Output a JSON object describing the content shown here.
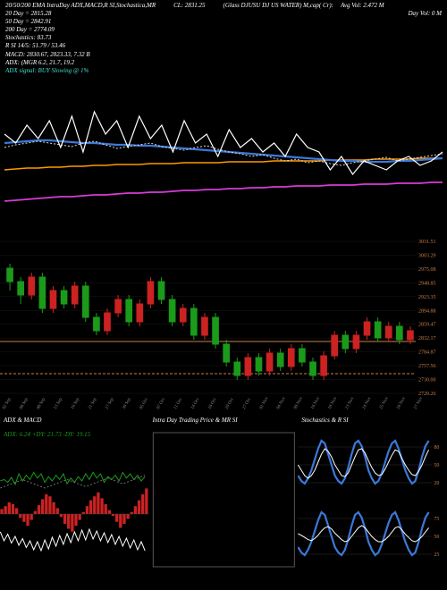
{
  "header": {
    "line1_left": "20/50/200 EMA IntraDay ADX,MACD,R   SI,Stochastica,MR",
    "line1_mid": "CL: 2831.25",
    "line1_right_a": "(Glass DJUSU   DJ US WATER) M,cap( Cr):",
    "line1_right_b": "Avg Vol: 2.472  M",
    "ma20": "20  Day = 2815.28",
    "ma50": "50  Day = 2842.91",
    "ma200": "200 Day = 2774.09",
    "stoch": "Stochastics: 83.73",
    "rsi": "R     SI 14/5: 51.79 / 53.46",
    "macd": "MACD: 2830.67, 2823.33, 7.32  B",
    "adx": "ADX:                            (MGR 6.2, 21.7, 19.2",
    "adx_sig": "ADX signal:                                               BUY Slowing @ 1%",
    "dayvol": "Day Vol: 0   M"
  },
  "colors": {
    "bg": "#000000",
    "text": "#ffffff",
    "accent": "#c97f4a",
    "ma20": "#ffffff",
    "ma50": "#3c78d8",
    "ma200": "#ff9900",
    "extra_line": "#d63cd6",
    "grid": "#333333",
    "candle_up": "#1a9b1a",
    "candle_up2": "#33cc33",
    "candle_dn": "#cc2222",
    "macd_hist": "#cc2222",
    "macd_line": "#1a9b1a",
    "stoch_fast": "#3c78d8",
    "stoch_slow": "#ffffff",
    "adx_txt": "#1a9b1a"
  },
  "candle_axis": [
    "3031.51",
    "3003.29",
    "2975.08",
    "2948.85",
    "2923.35",
    "2894.88",
    "2859.47",
    "2832.17",
    "2784.87",
    "2757.56",
    "2730.00",
    "2720.26"
  ],
  "dates": [
    "02 Sep",
    "06 Sep",
    "08 Sep",
    "13 Sep",
    "16 Sep",
    "21 Sep",
    "27 Sep",
    "30 Sep",
    "05 Oct",
    "07 Oct",
    "11 Oct",
    "14 Oct",
    "18 Oct",
    "20 Oct",
    "27 Oct",
    "01 Nov",
    "04 Nov",
    "09 Nov",
    "16 Nov",
    "18 Nov",
    "23 Nov",
    "24 Nov",
    "25 Nov",
    "26 Nov",
    "27 Nov"
  ],
  "ma_series": {
    "white": [
      70,
      80,
      60,
      75,
      55,
      85,
      50,
      90,
      45,
      70,
      55,
      85,
      50,
      75,
      60,
      90,
      55,
      80,
      70,
      95,
      65,
      85,
      75,
      90,
      80,
      95,
      70,
      85,
      90,
      110,
      95,
      115,
      100,
      105,
      110,
      100,
      95,
      105,
      100,
      90
    ],
    "dotted": [
      85,
      82,
      80,
      78,
      80,
      82,
      84,
      80,
      78,
      82,
      86,
      84,
      82,
      80,
      84,
      86,
      88,
      85,
      83,
      87,
      90,
      92,
      95,
      93,
      97,
      100,
      98,
      102,
      100,
      103,
      105,
      102,
      100,
      98,
      96,
      100,
      98,
      96,
      94,
      92
    ],
    "blue": [
      80,
      79,
      78,
      77,
      77,
      78,
      79,
      80,
      80,
      81,
      82,
      82,
      83,
      83,
      84,
      85,
      86,
      87,
      88,
      89,
      90,
      91,
      92,
      93,
      94,
      95,
      96,
      97,
      98,
      99,
      100,
      100,
      101,
      101,
      101,
      100,
      100,
      99,
      98,
      97
    ],
    "orange": [
      110,
      109,
      108,
      108,
      107,
      107,
      106,
      106,
      105,
      105,
      104,
      104,
      104,
      103,
      103,
      103,
      102,
      102,
      102,
      102,
      101,
      101,
      101,
      101,
      100,
      100,
      100,
      100,
      100,
      99,
      99,
      99,
      99,
      98,
      98,
      98,
      98,
      97,
      97,
      97
    ],
    "magenta": [
      145,
      144,
      143,
      142,
      141,
      140,
      140,
      139,
      138,
      138,
      137,
      136,
      136,
      135,
      135,
      134,
      133,
      133,
      132,
      132,
      131,
      131,
      130,
      130,
      129,
      129,
      128,
      128,
      128,
      127,
      127,
      127,
      126,
      126,
      126,
      125,
      125,
      125,
      124,
      124
    ]
  },
  "candles": [
    {
      "o": 40,
      "c": 55,
      "h": 35,
      "l": 65,
      "d": 1
    },
    {
      "o": 55,
      "c": 70,
      "h": 50,
      "l": 80,
      "d": 1
    },
    {
      "o": 70,
      "c": 50,
      "h": 45,
      "l": 75,
      "d": -1
    },
    {
      "o": 50,
      "c": 85,
      "h": 45,
      "l": 90,
      "d": 1
    },
    {
      "o": 85,
      "c": 65,
      "h": 60,
      "l": 90,
      "d": -1
    },
    {
      "o": 65,
      "c": 80,
      "h": 60,
      "l": 85,
      "d": 1
    },
    {
      "o": 80,
      "c": 60,
      "h": 55,
      "l": 85,
      "d": -1
    },
    {
      "o": 60,
      "c": 95,
      "h": 55,
      "l": 100,
      "d": 1
    },
    {
      "o": 95,
      "c": 110,
      "h": 90,
      "l": 115,
      "d": 1
    },
    {
      "o": 110,
      "c": 90,
      "h": 85,
      "l": 115,
      "d": -1
    },
    {
      "o": 90,
      "c": 75,
      "h": 70,
      "l": 95,
      "d": -1
    },
    {
      "o": 75,
      "c": 100,
      "h": 70,
      "l": 105,
      "d": 1
    },
    {
      "o": 100,
      "c": 80,
      "h": 75,
      "l": 105,
      "d": -1
    },
    {
      "o": 80,
      "c": 55,
      "h": 50,
      "l": 85,
      "d": -1
    },
    {
      "o": 55,
      "c": 75,
      "h": 50,
      "l": 80,
      "d": 1
    },
    {
      "o": 75,
      "c": 100,
      "h": 70,
      "l": 105,
      "d": 1
    },
    {
      "o": 100,
      "c": 85,
      "h": 80,
      "l": 105,
      "d": -1
    },
    {
      "o": 85,
      "c": 115,
      "h": 80,
      "l": 120,
      "d": 1
    },
    {
      "o": 115,
      "c": 95,
      "h": 90,
      "l": 120,
      "d": -1
    },
    {
      "o": 95,
      "c": 125,
      "h": 90,
      "l": 130,
      "d": 1
    },
    {
      "o": 125,
      "c": 145,
      "h": 120,
      "l": 150,
      "d": 1
    },
    {
      "o": 145,
      "c": 160,
      "h": 140,
      "l": 165,
      "d": 1
    },
    {
      "o": 160,
      "c": 140,
      "h": 135,
      "l": 165,
      "d": -1
    },
    {
      "o": 140,
      "c": 155,
      "h": 135,
      "l": 160,
      "d": 1
    },
    {
      "o": 155,
      "c": 135,
      "h": 130,
      "l": 160,
      "d": -1
    },
    {
      "o": 135,
      "c": 150,
      "h": 130,
      "l": 155,
      "d": 1
    },
    {
      "o": 150,
      "c": 130,
      "h": 125,
      "l": 155,
      "d": -1
    },
    {
      "o": 130,
      "c": 145,
      "h": 125,
      "l": 150,
      "d": 1
    },
    {
      "o": 145,
      "c": 160,
      "h": 140,
      "l": 165,
      "d": 1
    },
    {
      "o": 160,
      "c": 138,
      "h": 133,
      "l": 165,
      "d": -1
    },
    {
      "o": 138,
      "c": 115,
      "h": 110,
      "l": 142,
      "d": -1
    },
    {
      "o": 115,
      "c": 130,
      "h": 110,
      "l": 135,
      "d": 1
    },
    {
      "o": 130,
      "c": 115,
      "h": 110,
      "l": 135,
      "d": -1
    },
    {
      "o": 115,
      "c": 100,
      "h": 95,
      "l": 120,
      "d": -1
    },
    {
      "o": 100,
      "c": 118,
      "h": 95,
      "l": 122,
      "d": 1
    },
    {
      "o": 118,
      "c": 105,
      "h": 100,
      "l": 122,
      "d": -1
    },
    {
      "o": 105,
      "c": 120,
      "h": 100,
      "l": 125,
      "d": 1
    },
    {
      "o": 120,
      "c": 110,
      "h": 105,
      "l": 125,
      "d": -1
    }
  ],
  "sub1": {
    "title": "ADX  & MACD",
    "label": "ADX: 6.24  +DY: 21.73 -DY: 19.15",
    "hist": [
      5,
      8,
      12,
      10,
      6,
      -4,
      -8,
      -12,
      -6,
      3,
      9,
      15,
      20,
      18,
      12,
      6,
      -3,
      -10,
      -15,
      -18,
      -12,
      -6,
      2,
      8,
      14,
      18,
      22,
      16,
      10,
      4,
      -2,
      -8,
      -14,
      -10,
      -5,
      2,
      8,
      14,
      20,
      26
    ],
    "green": [
      60,
      58,
      62,
      55,
      65,
      50,
      60,
      52,
      58,
      48,
      56,
      50,
      62,
      54,
      60,
      52,
      58,
      50,
      64,
      56,
      62,
      54,
      60,
      50,
      58,
      48,
      56,
      50,
      62,
      54,
      58,
      52,
      60,
      48,
      56,
      50,
      58,
      52,
      60,
      54
    ],
    "white": [
      90,
      70,
      85,
      65,
      80,
      60,
      75,
      55,
      70,
      50,
      68,
      48,
      72,
      52,
      78,
      58,
      82,
      62,
      86,
      66,
      90,
      70,
      94,
      72,
      96,
      74,
      92,
      70,
      88,
      66,
      84,
      62,
      80,
      58,
      76,
      54,
      72,
      50,
      68,
      48
    ],
    "dash": [
      70,
      68,
      66,
      64,
      62,
      60,
      58,
      60,
      62,
      64,
      66,
      68,
      70,
      68,
      66,
      64,
      62,
      60,
      58,
      60,
      62,
      64,
      66,
      68,
      66,
      64,
      62,
      60,
      58,
      56,
      58,
      60,
      62,
      64,
      62,
      60,
      58,
      56,
      54,
      52
    ]
  },
  "sub2": {
    "title": "Intra  Day Trading Price  & MR         SI"
  },
  "sub3": {
    "title": "Stochastics & R         SI",
    "ticks": [
      "80",
      "50",
      "20"
    ],
    "ticks2": [
      "75",
      "50",
      "25"
    ],
    "blue": [
      30,
      20,
      15,
      25,
      40,
      60,
      80,
      95,
      90,
      70,
      50,
      30,
      20,
      15,
      25,
      45,
      70,
      90,
      95,
      85,
      65,
      40,
      25,
      15,
      20,
      35,
      55,
      75,
      90,
      95,
      80,
      60,
      40,
      25,
      15,
      20,
      40,
      65,
      85,
      95
    ],
    "white": [
      50,
      40,
      30,
      25,
      30,
      40,
      55,
      70,
      80,
      75,
      65,
      50,
      40,
      30,
      28,
      35,
      50,
      65,
      78,
      80,
      72,
      58,
      45,
      35,
      30,
      32,
      42,
      55,
      68,
      78,
      75,
      62,
      50,
      40,
      32,
      30,
      38,
      50,
      65,
      78
    ],
    "white2": [
      55,
      52,
      48,
      44,
      42,
      46,
      52,
      60,
      66,
      68,
      64,
      56,
      50,
      44,
      40,
      42,
      50,
      58,
      66,
      70,
      66,
      58,
      50,
      44,
      40,
      40,
      44,
      50,
      58,
      66,
      68,
      62,
      54,
      48,
      42,
      40,
      44,
      50,
      58,
      66
    ]
  }
}
